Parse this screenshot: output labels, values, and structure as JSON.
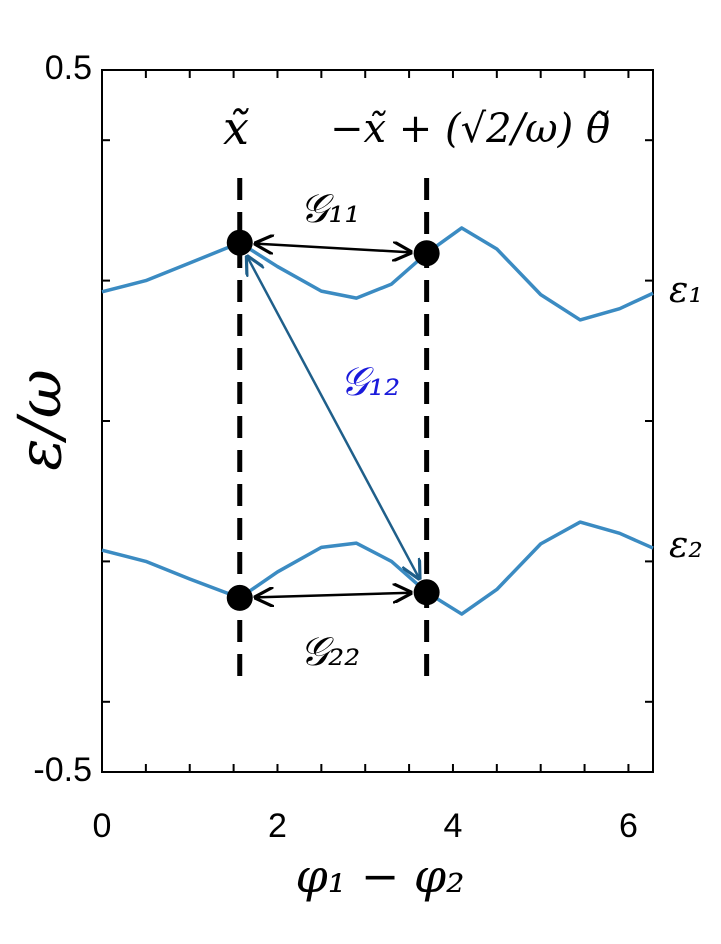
{
  "chart_data": {
    "type": "line",
    "x_label": "φ₁ − φ₂",
    "y_label": "ε/ω",
    "x": [
      0,
      0.5,
      1,
      1.57,
      2,
      2.5,
      2.9,
      3.3,
      3.7,
      4.1,
      4.5,
      5,
      5.45,
      5.9,
      6.28
    ],
    "series": [
      {
        "name": "ε₁",
        "color": "#3b8bc2",
        "values": [
          0.184,
          0.2,
          0.225,
          0.254,
          0.22,
          0.185,
          0.175,
          0.195,
          0.239,
          0.275,
          0.245,
          0.18,
          0.144,
          0.16,
          0.182
        ]
      },
      {
        "name": "ε₂",
        "color": "#3b8bc2",
        "values": [
          -0.184,
          -0.2,
          -0.225,
          -0.252,
          -0.215,
          -0.18,
          -0.174,
          -0.2,
          -0.244,
          -0.275,
          -0.24,
          -0.175,
          -0.144,
          -0.16,
          -0.181
        ]
      }
    ],
    "xlim": [
      0,
      6.28
    ],
    "ylim": [
      -0.5,
      0.5
    ],
    "xticks": [
      0,
      2,
      4,
      6
    ],
    "yticks": [
      -0.5,
      0.5
    ],
    "xminorticks": [
      0.5,
      1,
      1.5,
      2.5,
      3,
      3.5,
      4.5,
      5,
      5.5
    ],
    "yminorticks": [
      -0.4,
      -0.2,
      0,
      0.2,
      0.4
    ],
    "vlines": [
      1.57,
      3.7
    ],
    "markers": [
      {
        "x": 1.57,
        "y": 0.254
      },
      {
        "x": 3.7,
        "y": 0.239
      },
      {
        "x": 1.57,
        "y": -0.252
      },
      {
        "x": 3.7,
        "y": -0.244
      }
    ],
    "annotations": [
      "x̃",
      "−x̃ + (√2/ω) θ̃",
      "𝒢₁₁",
      "𝒢₁₂",
      "𝒢₂₂"
    ]
  }
}
